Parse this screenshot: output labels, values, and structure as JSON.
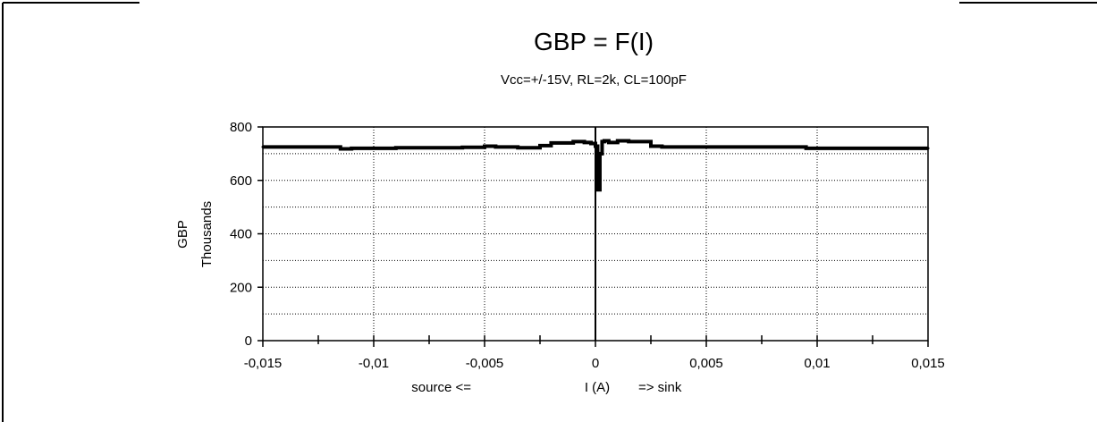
{
  "chart_data": {
    "type": "line",
    "title": "GBP = F(I)",
    "subtitle": "Vcc=+/-15V, RL=2k, CL=100pF",
    "ylabel": "GBP",
    "yunit": "Thousands",
    "xlabel": {
      "left": "source <=",
      "center": "I (A)",
      "right": "=> sink"
    },
    "xlim": [
      -0.015,
      0.015
    ],
    "ylim": [
      0,
      800
    ],
    "x_ticks": [
      {
        "value": -0.015,
        "label": "-0,015"
      },
      {
        "value": -0.01,
        "label": "-0,01"
      },
      {
        "value": -0.005,
        "label": "-0,005"
      },
      {
        "value": 0,
        "label": "0"
      },
      {
        "value": 0.005,
        "label": "0,005"
      },
      {
        "value": 0.01,
        "label": "0,01"
      },
      {
        "value": 0.015,
        "label": "0,015"
      }
    ],
    "y_ticks": [
      {
        "value": 0,
        "label": "0"
      },
      {
        "value": 200,
        "label": "200"
      },
      {
        "value": 400,
        "label": "400"
      },
      {
        "value": 600,
        "label": "600"
      },
      {
        "value": 800,
        "label": "800"
      }
    ],
    "grid": true,
    "series": [
      {
        "x": [
          -0.015,
          -0.0135,
          -0.012,
          -0.0115,
          -0.011,
          -0.009,
          -0.007,
          -0.006,
          -0.005,
          -0.0045,
          -0.0035,
          -0.0025,
          -0.002,
          -0.001,
          -0.0005,
          -0.0002,
          0,
          0.0001,
          0.0002,
          0.0003,
          0.0004,
          0.0006,
          0.001,
          0.0015,
          0.002,
          0.0025,
          0.003,
          0.004,
          0.005,
          0.007,
          0.009,
          0.0095,
          0.01,
          0.012,
          0.015
        ],
        "y": [
          725,
          725,
          725,
          718,
          720,
          722,
          722,
          724,
          728,
          725,
          722,
          730,
          740,
          745,
          742,
          738,
          728,
          565,
          700,
          745,
          748,
          742,
          748,
          745,
          745,
          728,
          725,
          725,
          725,
          725,
          725,
          720,
          720,
          720,
          720
        ]
      }
    ]
  }
}
